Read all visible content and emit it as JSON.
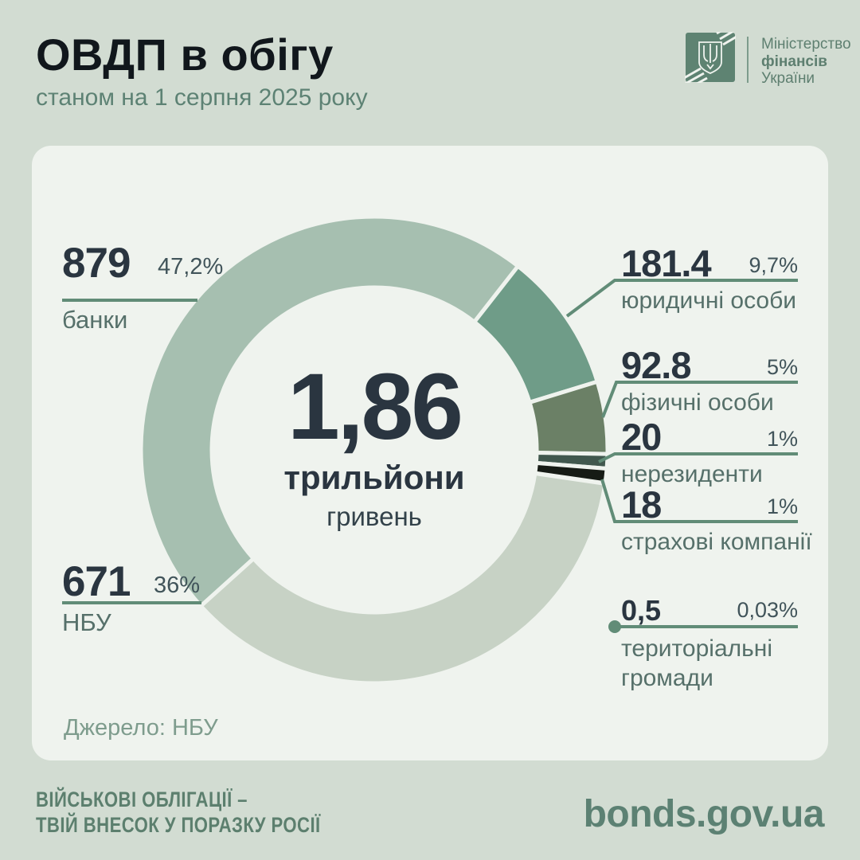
{
  "header": {
    "title": "ОВДП в обігу",
    "subtitle": "станом на 1 серпня 2025 року",
    "logo": {
      "line1": "Міністерство",
      "line2": "фінансів",
      "line3": "України"
    }
  },
  "center": {
    "value": "1,86",
    "unit_bold": "трильйони",
    "unit": "гривень"
  },
  "source": "Джерело: НБУ",
  "footer": {
    "slogan_line1": "ВІЙСЬКОВІ ОБЛІГАЦІЇ –",
    "slogan_line2": "ТВІЙ ВНЕСОК У ПОРАЗКУ РОСІЇ",
    "site": "bonds.gov.ua"
  },
  "colors": {
    "page_bg": "#d2dcd2",
    "card_bg": "#eff3ee",
    "accent_green": "#5d8274",
    "leader_line": "#618c77",
    "number_dark": "#2a3540"
  },
  "chart_data": {
    "type": "pie",
    "subtype": "donut",
    "title": "ОВДП в обігу станом на 1 серпня 2025 року",
    "center_label": "1,86 трильйони гривень",
    "value_units": "млрд грн",
    "start_angle_deg": 228,
    "clockwise": true,
    "segments": [
      {
        "label": "банки",
        "value": "879",
        "pct": "47,2%",
        "pct_num": 47.2,
        "color": "#a6bfb0"
      },
      {
        "label": "юридичні особи",
        "value": "181.4",
        "pct": "9,7%",
        "pct_num": 9.7,
        "color": "#6f9c88"
      },
      {
        "label": "фізичні особи",
        "value": "92.8",
        "pct": "5%",
        "pct_num": 5,
        "color": "#6b8066"
      },
      {
        "label": "нерезиденти",
        "value": "20",
        "pct": "1%",
        "pct_num": 1,
        "color": "#41584e"
      },
      {
        "label": "страхові компанії",
        "value": "18",
        "pct": "1%",
        "pct_num": 1,
        "color": "#161b15"
      },
      {
        "label": "територіальні громади",
        "value": "0,5",
        "pct": "0,03%",
        "pct_num": 0.03,
        "color": "#eff3ee"
      },
      {
        "label": "НБУ",
        "value": "671",
        "pct": "36%",
        "pct_num": 36,
        "color": "#c7d2c5"
      }
    ]
  }
}
